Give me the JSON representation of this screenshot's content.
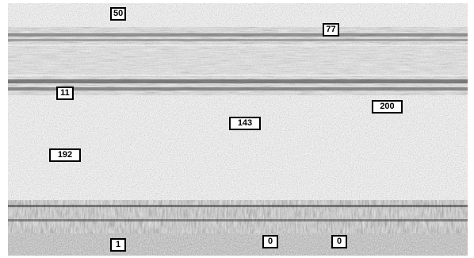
{
  "image": {
    "markers": [
      {
        "label": "50"
      },
      {
        "label": "77"
      },
      {
        "label": "11"
      },
      {
        "label": "200"
      },
      {
        "label": "143"
      },
      {
        "label": "192"
      },
      {
        "label": "1"
      },
      {
        "label": "0"
      },
      {
        "label": "0"
      }
    ]
  }
}
